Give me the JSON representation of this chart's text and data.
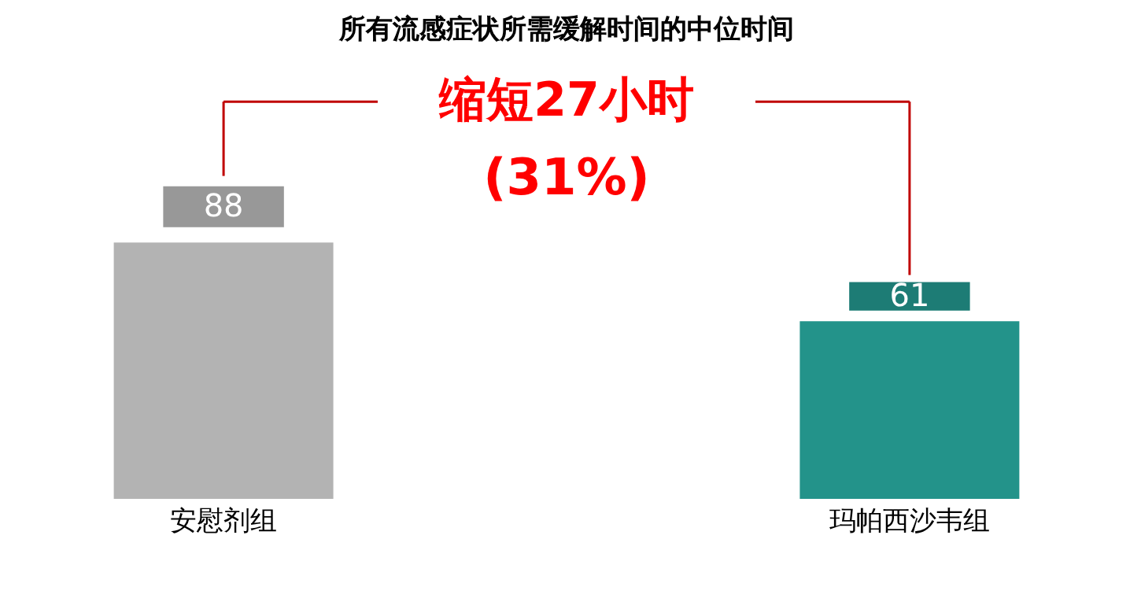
{
  "chart_data": {
    "type": "bar",
    "title": "所有流感症状所需缓解时间的中位时间",
    "categories": [
      "安慰剂组",
      "玛帕西沙韦组"
    ],
    "values": [
      88,
      61
    ],
    "colors": [
      "#b3b3b3",
      "#23938a"
    ],
    "data_labels": true,
    "tick_labels": "x",
    "annotations": [
      "缩短27小时",
      "(31%)"
    ]
  }
}
